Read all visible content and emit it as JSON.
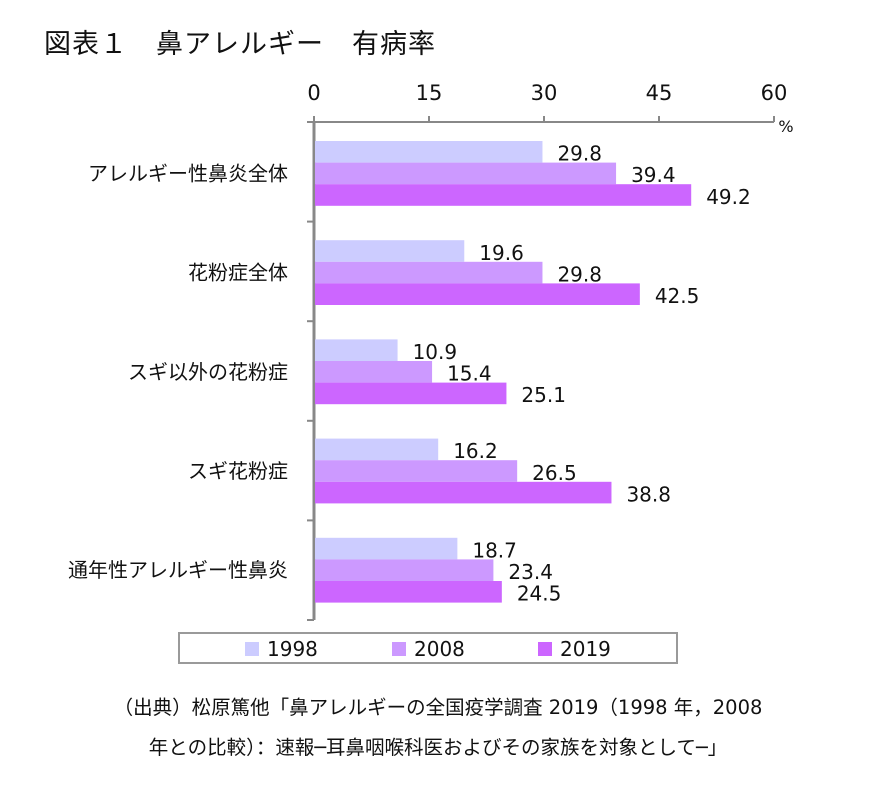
{
  "title": "図表１　鼻アレルギー　有病率",
  "chart_data": {
    "type": "bar",
    "orientation": "horizontal",
    "title": "図表１　鼻アレルギー　有病率",
    "unit_label": "%",
    "xlim": [
      0,
      60
    ],
    "xticks": [
      "0",
      "15",
      "30",
      "45",
      "60"
    ],
    "categories": [
      "アレルギー性鼻炎全体",
      "花粉症全体",
      "スギ以外の花粉症",
      "スギ花粉症",
      "通年性アレルギー性鼻炎"
    ],
    "series": [
      {
        "name": "1998",
        "color": "#ccccff",
        "values": [
          29.8,
          19.6,
          10.9,
          16.2,
          18.7
        ]
      },
      {
        "name": "2008",
        "color": "#cc99ff",
        "values": [
          39.4,
          29.8,
          15.4,
          26.5,
          23.4
        ]
      },
      {
        "name": "2019",
        "color": "#cc66ff",
        "values": [
          49.2,
          42.5,
          25.1,
          38.8,
          24.5
        ]
      }
    ],
    "value_labels": [
      [
        "29.8",
        "19.6",
        "10.9",
        "16.2",
        "18.7"
      ],
      [
        "39.4",
        "29.8",
        "15.4",
        "26.5",
        "23.4"
      ],
      [
        "49.2",
        "42.5",
        "25.1",
        "38.8",
        "24.5"
      ]
    ],
    "legend_position": "bottom"
  },
  "source": {
    "line1": "（出典）松原篤他「鼻アレルギーの全国疫学調査 2019（1998 年，2008",
    "line2": "年との比較）：速報─耳鼻咽喉科医およびその家族を対象として─」"
  }
}
